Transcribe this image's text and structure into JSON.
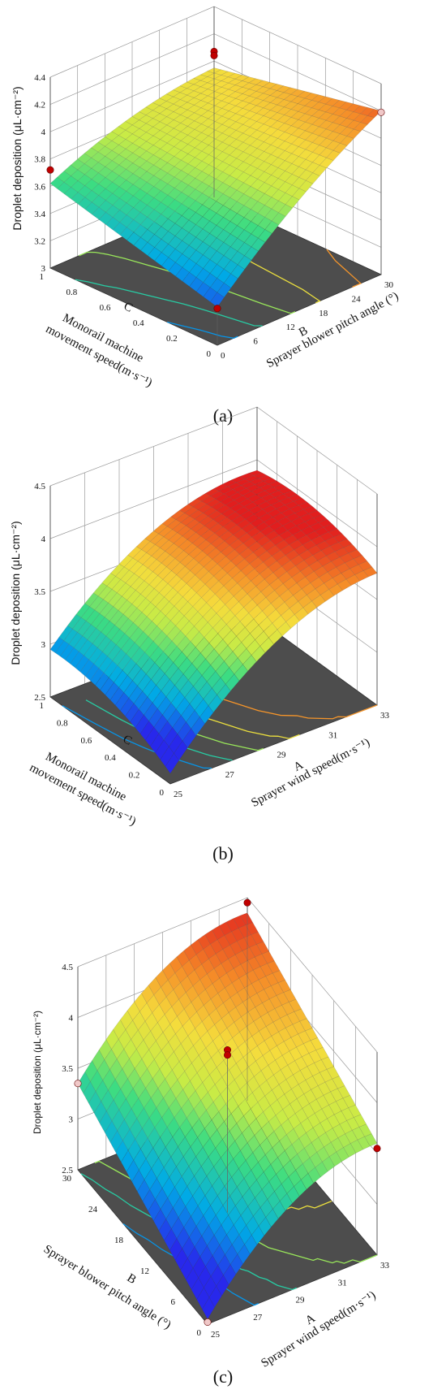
{
  "chart_data": [
    {
      "type": "surface",
      "caption": "(a)",
      "zlabel": "Droplet deposition (μL·cm⁻²)",
      "ylabel_letter": "C",
      "ylabel_line1": "Monorail machine",
      "ylabel_line2": "movement speed(m·s⁻¹)",
      "xlabel_letter": "B",
      "xlabel": "Sprayer blower pitch angle (°)",
      "zlim": [
        3,
        4.4
      ],
      "zticks": [
        "3",
        "3.2",
        "3.4",
        "3.6",
        "3.8",
        "4",
        "4.2",
        "4.4"
      ],
      "yticks": [
        "0",
        "0.2",
        "0.4",
        "0.6",
        "0.8",
        "1"
      ],
      "xticks": [
        "0",
        "6",
        "12",
        "18",
        "24",
        "30"
      ],
      "corners": {
        "back": 3.95,
        "left": 3.62,
        "front": 3.28,
        "right": 4.2
      },
      "colormap_range": [
        3.2,
        4.3
      ],
      "points": [
        {
          "u": 0,
          "v": 1,
          "z": 3.72,
          "color": "#c00000"
        },
        {
          "u": 1,
          "v": 1,
          "z": 4.07,
          "color": "#c00000"
        },
        {
          "u": 1,
          "v": 1,
          "z": 4.04,
          "color": "#c00000"
        },
        {
          "u": 0,
          "v": 0,
          "z": 3.27,
          "color": "#c00000"
        },
        {
          "u": 1,
          "v": 0,
          "z": 4.19,
          "color": "#f0c8c8"
        }
      ]
    },
    {
      "type": "surface",
      "caption": "(b)",
      "zlabel": "Droplet deposition (μL·cm⁻²)",
      "ylabel_letter": "C",
      "ylabel_line1": "Monorail machine",
      "ylabel_line2": "movement speed(m·s⁻¹)",
      "xlabel_letter": "A",
      "xlabel": "Sprayer wind speed(m·s⁻¹)",
      "zlim": [
        2.5,
        4.5
      ],
      "zticks": [
        "2.5",
        "3",
        "3.5",
        "4",
        "4.5"
      ],
      "yticks": [
        "0",
        "0.2",
        "0.4",
        "0.6",
        "0.8",
        "1"
      ],
      "xticks": [
        "25",
        "27",
        "29",
        "31",
        "33"
      ],
      "corners": {
        "back": 3.9,
        "left": 2.95,
        "front": 2.6,
        "right": 3.75
      },
      "colormap_range": [
        2.8,
        3.9
      ],
      "points": []
    },
    {
      "type": "surface",
      "caption": "(c)",
      "zlabel": "Droplet deposition (μL·cm⁻²)",
      "ylabel_letter": "B",
      "ylabel_line1": "Sprayer blower pitch angle (°)",
      "ylabel_line2": "",
      "xlabel_letter": "A",
      "xlabel": "Sprayer wind speed(m·s⁻¹)",
      "zlim": [
        2.5,
        4.5
      ],
      "zticks": [
        "2.5",
        "3",
        "3.5",
        "4",
        "4.5"
      ],
      "yticks": [
        "0",
        "6",
        "12",
        "18",
        "24",
        "30"
      ],
      "xticks": [
        "25",
        "27",
        "29",
        "31",
        "33"
      ],
      "corners": {
        "back": 4.35,
        "left": 3.35,
        "front": 2.55,
        "right": 3.6
      },
      "colormap_range": [
        2.8,
        4.4
      ],
      "points": [
        {
          "u": 1,
          "v": 1,
          "z": 4.45,
          "color": "#c00000"
        },
        {
          "u": 0.5,
          "v": 0.5,
          "z": 4.1,
          "color": "#c00000"
        },
        {
          "u": 0.5,
          "v": 0.5,
          "z": 4.05,
          "color": "#c00000"
        },
        {
          "u": 0,
          "v": 1,
          "z": 3.35,
          "color": "#f0c8c8"
        },
        {
          "u": 1,
          "v": 0,
          "z": 3.55,
          "color": "#c00000"
        },
        {
          "u": 0,
          "v": 0,
          "z": 2.52,
          "color": "#f0c8c8"
        }
      ]
    }
  ]
}
